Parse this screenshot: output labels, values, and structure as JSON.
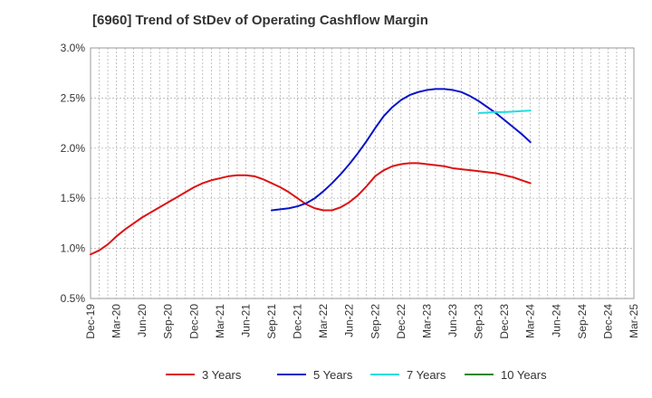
{
  "chart_data": {
    "type": "line",
    "title": "[6960]  Trend of StDev of Operating Cashflow Margin",
    "xlabel": "",
    "ylabel": "",
    "y_unit": "%",
    "ylim": [
      0.5,
      3.0
    ],
    "yticks": [
      "0.5%",
      "1.0%",
      "1.5%",
      "2.0%",
      "2.5%",
      "3.0%"
    ],
    "x_range": [
      "Dec-19",
      "Mar-25"
    ],
    "categories": [
      "Dec-19",
      "Mar-20",
      "Jun-20",
      "Sep-20",
      "Dec-20",
      "Mar-21",
      "Jun-21",
      "Sep-21",
      "Dec-21",
      "Mar-22",
      "Jun-22",
      "Sep-22",
      "Dec-22",
      "Mar-23",
      "Jun-23",
      "Sep-23",
      "Dec-23",
      "Mar-24",
      "Jun-24",
      "Sep-24",
      "Dec-24",
      "Mar-25"
    ],
    "grid": true,
    "legend_position": "bottom",
    "series": [
      {
        "name": "3 Years",
        "color": "#dd1111",
        "points": [
          [
            "Dec-19",
            0.94
          ],
          [
            "Jan-20",
            0.98
          ],
          [
            "Feb-20",
            1.04
          ],
          [
            "Mar-20",
            1.12
          ],
          [
            "Apr-20",
            1.19
          ],
          [
            "May-20",
            1.25
          ],
          [
            "Jun-20",
            1.31
          ],
          [
            "Jul-20",
            1.36
          ],
          [
            "Aug-20",
            1.41
          ],
          [
            "Sep-20",
            1.46
          ],
          [
            "Oct-20",
            1.51
          ],
          [
            "Nov-20",
            1.56
          ],
          [
            "Dec-20",
            1.61
          ],
          [
            "Jan-21",
            1.65
          ],
          [
            "Feb-21",
            1.68
          ],
          [
            "Mar-21",
            1.7
          ],
          [
            "Apr-21",
            1.72
          ],
          [
            "May-21",
            1.73
          ],
          [
            "Jun-21",
            1.73
          ],
          [
            "Jul-21",
            1.72
          ],
          [
            "Aug-21",
            1.69
          ],
          [
            "Sep-21",
            1.65
          ],
          [
            "Oct-21",
            1.61
          ],
          [
            "Nov-21",
            1.56
          ],
          [
            "Dec-21",
            1.5
          ],
          [
            "Jan-22",
            1.44
          ],
          [
            "Feb-22",
            1.4
          ],
          [
            "Mar-22",
            1.38
          ],
          [
            "Apr-22",
            1.38
          ],
          [
            "May-22",
            1.41
          ],
          [
            "Jun-22",
            1.46
          ],
          [
            "Jul-22",
            1.53
          ],
          [
            "Aug-22",
            1.62
          ],
          [
            "Sep-22",
            1.72
          ],
          [
            "Oct-22",
            1.78
          ],
          [
            "Nov-22",
            1.82
          ],
          [
            "Dec-22",
            1.84
          ],
          [
            "Jan-23",
            1.85
          ],
          [
            "Feb-23",
            1.85
          ],
          [
            "Mar-23",
            1.84
          ],
          [
            "Apr-23",
            1.83
          ],
          [
            "May-23",
            1.82
          ],
          [
            "Jun-23",
            1.8
          ],
          [
            "Jul-23",
            1.79
          ],
          [
            "Aug-23",
            1.78
          ],
          [
            "Sep-23",
            1.77
          ],
          [
            "Oct-23",
            1.76
          ],
          [
            "Nov-23",
            1.75
          ],
          [
            "Dec-23",
            1.73
          ],
          [
            "Jan-24",
            1.71
          ],
          [
            "Feb-24",
            1.68
          ],
          [
            "Mar-24",
            1.65
          ]
        ]
      },
      {
        "name": "5 Years",
        "color": "#0a14c8",
        "points": [
          [
            "Sep-21",
            1.38
          ],
          [
            "Oct-21",
            1.39
          ],
          [
            "Nov-21",
            1.4
          ],
          [
            "Dec-21",
            1.42
          ],
          [
            "Jan-22",
            1.45
          ],
          [
            "Feb-22",
            1.5
          ],
          [
            "Mar-22",
            1.57
          ],
          [
            "Apr-22",
            1.65
          ],
          [
            "May-22",
            1.74
          ],
          [
            "Jun-22",
            1.84
          ],
          [
            "Jul-22",
            1.95
          ],
          [
            "Aug-22",
            2.07
          ],
          [
            "Sep-22",
            2.2
          ],
          [
            "Oct-22",
            2.32
          ],
          [
            "Nov-22",
            2.41
          ],
          [
            "Dec-22",
            2.48
          ],
          [
            "Jan-23",
            2.53
          ],
          [
            "Feb-23",
            2.56
          ],
          [
            "Mar-23",
            2.58
          ],
          [
            "Apr-23",
            2.59
          ],
          [
            "May-23",
            2.59
          ],
          [
            "Jun-23",
            2.58
          ],
          [
            "Jul-23",
            2.56
          ],
          [
            "Aug-23",
            2.52
          ],
          [
            "Sep-23",
            2.47
          ],
          [
            "Oct-23",
            2.41
          ],
          [
            "Nov-23",
            2.35
          ],
          [
            "Dec-23",
            2.28
          ],
          [
            "Jan-24",
            2.21
          ],
          [
            "Feb-24",
            2.14
          ],
          [
            "Mar-24",
            2.06
          ]
        ]
      },
      {
        "name": "7 Years",
        "color": "#22dddd",
        "points": [
          [
            "Sep-23",
            2.35
          ],
          [
            "Oct-23",
            2.355
          ],
          [
            "Nov-23",
            2.36
          ],
          [
            "Dec-23",
            2.36
          ],
          [
            "Jan-24",
            2.365
          ],
          [
            "Feb-24",
            2.37
          ],
          [
            "Mar-24",
            2.375
          ]
        ]
      },
      {
        "name": "10 Years",
        "color": "#228822",
        "points": []
      }
    ]
  }
}
